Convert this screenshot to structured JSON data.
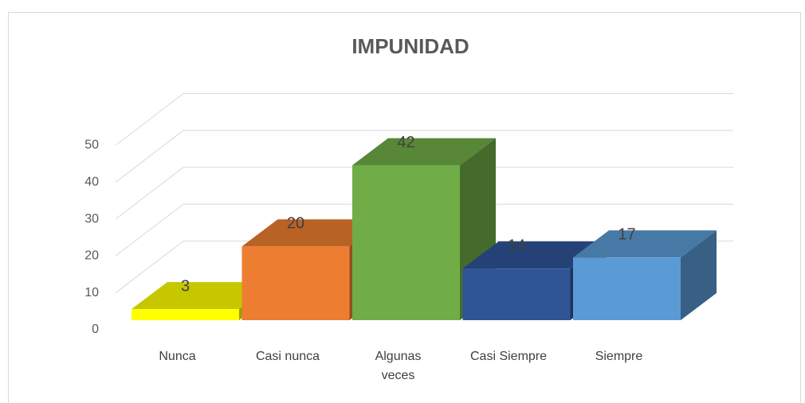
{
  "chart_data": {
    "type": "bar3d",
    "title": "IMPUNIDAD",
    "categories": [
      "Nunca",
      "Casi nunca",
      "Algunas veces",
      "Casi Siempre",
      "Siempre"
    ],
    "values": [
      3,
      20,
      42,
      14,
      17
    ],
    "colors": [
      "#ffff00",
      "#ed7d31",
      "#70ad47",
      "#2f5597",
      "#5b9bd5"
    ],
    "ylim": [
      0,
      50
    ],
    "yticks": [
      0,
      10,
      20,
      30,
      40,
      50
    ],
    "grid": true
  }
}
